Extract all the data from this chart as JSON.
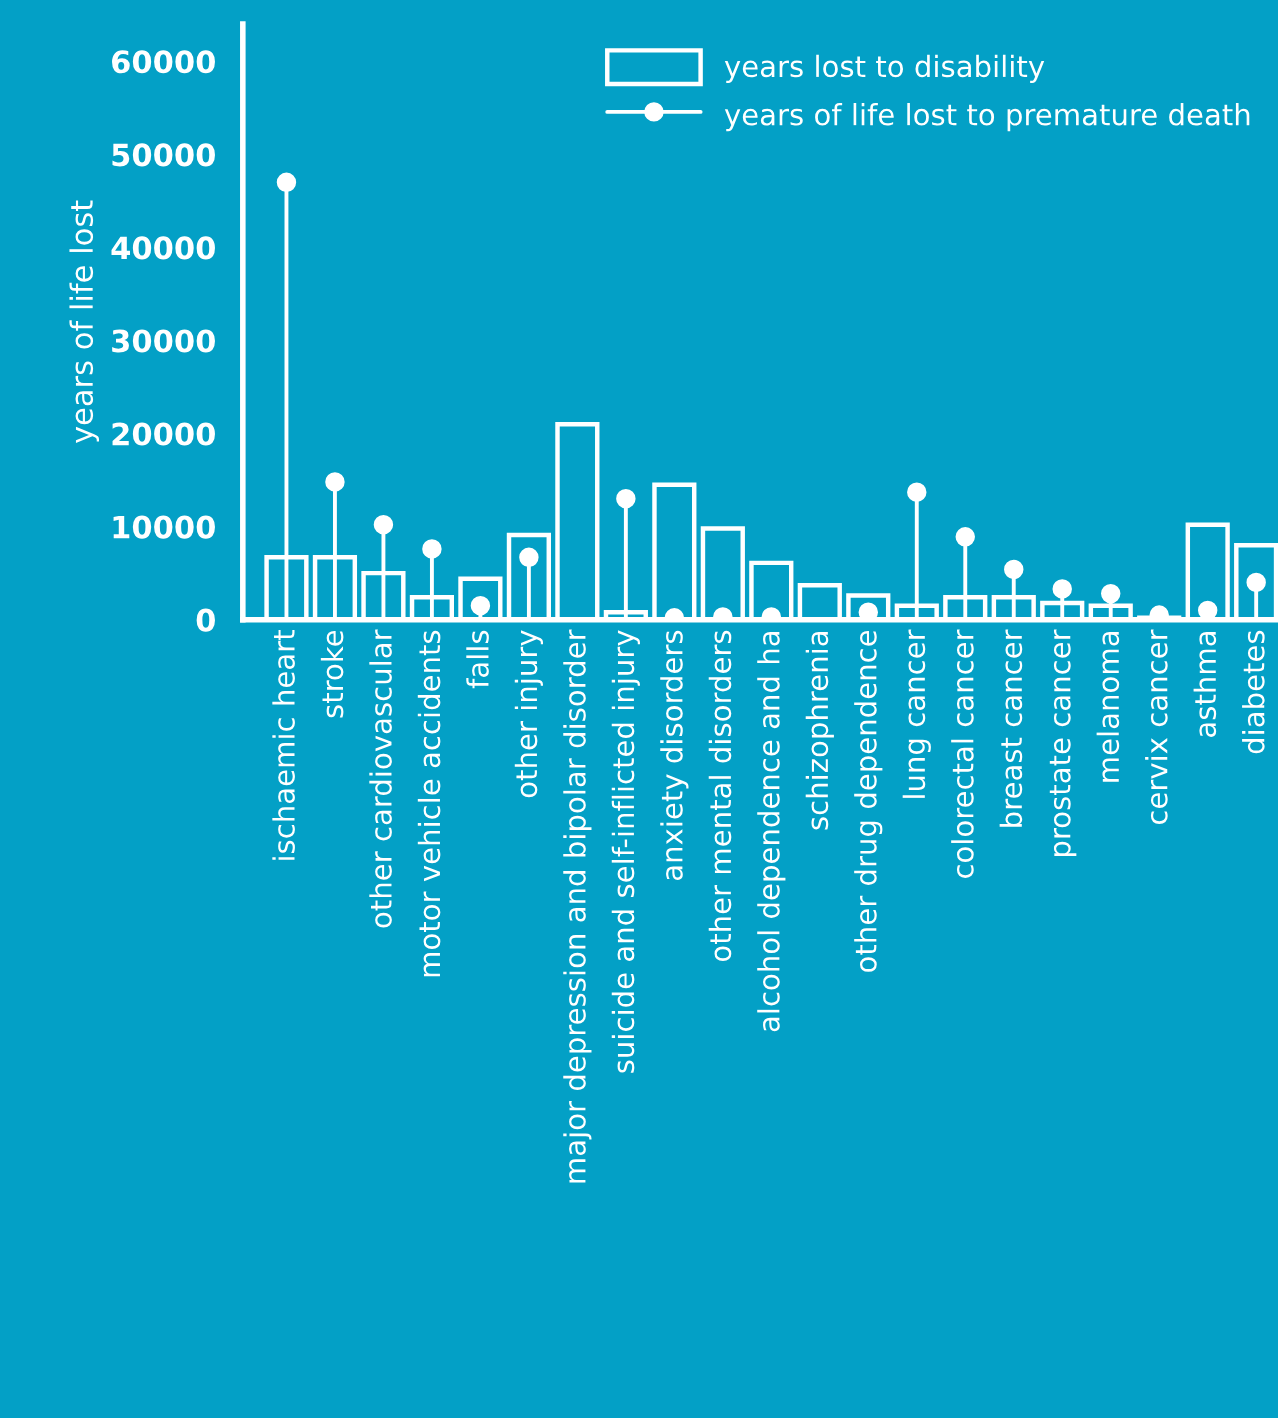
{
  "chart_data": {
    "type": "bar",
    "ylabel": "years of life lost",
    "categories": [
      "ischaemic heart",
      "stroke",
      "other cardiovascular",
      "motor vehicle accidents",
      "falls",
      "other injury",
      "major depression and bipolar disorder",
      "suicide and self-inflicted injury",
      "anxiety disorders",
      "other mental disorders",
      "alcohol dependence and ha",
      "schizophrenia",
      "other drug dependence",
      "lung cancer",
      "colorectal cancer",
      "breast cancer",
      "prostate cancer",
      "melanoma",
      "cervix cancer",
      "asthma",
      "diabetes"
    ],
    "series": [
      {
        "name": "years lost to disability",
        "color": "#ffffff",
        "values": [
          6700,
          6700,
          5000,
          2400,
          4400,
          9100,
          21000,
          800,
          14500,
          9800,
          6100,
          3700,
          2600,
          1500,
          2400,
          2400,
          1800,
          1500,
          200,
          10200,
          8000
        ]
      },
      {
        "name": "years of life lost to premature death",
        "type": "lollipop",
        "color": "#ffffff",
        "values": [
          47000,
          14800,
          10200,
          7600,
          1500,
          6700,
          null,
          13000,
          200,
          300,
          300,
          null,
          800,
          13700,
          8900,
          5400,
          3300,
          2800,
          500,
          1000,
          4000
        ]
      }
    ],
    "ylim": [
      0,
      64000
    ],
    "yticks": [
      0,
      10000,
      20000,
      30000,
      40000,
      50000,
      60000
    ],
    "legend": "top right",
    "marker": "circle"
  }
}
